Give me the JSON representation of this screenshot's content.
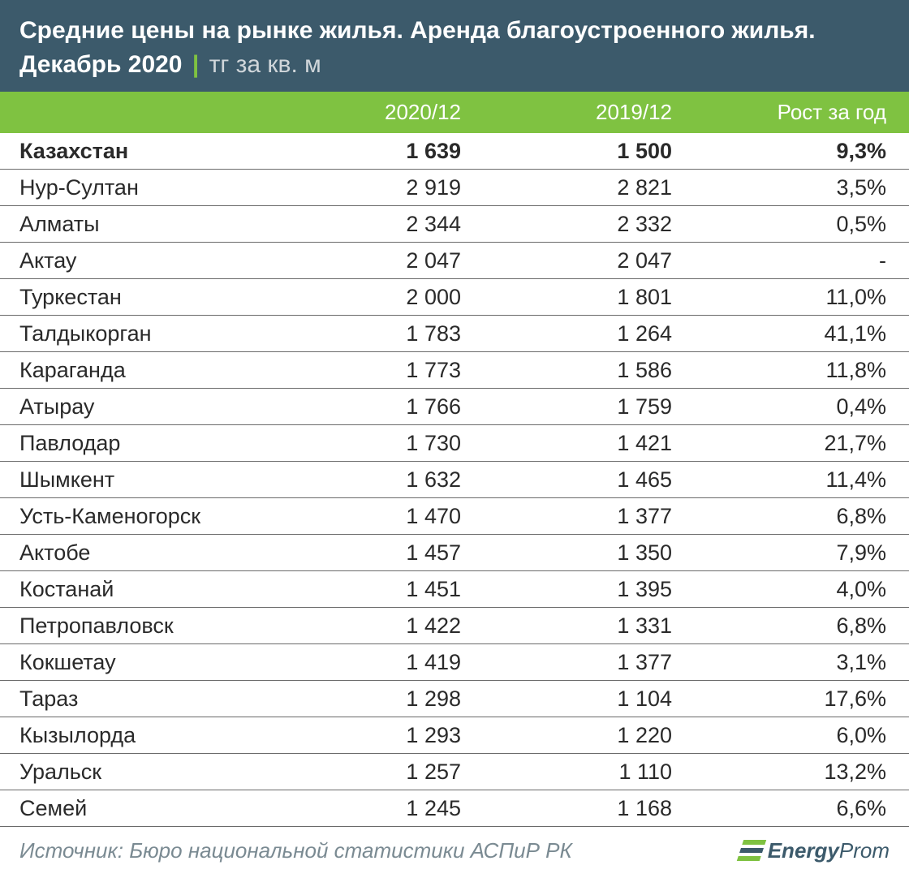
{
  "header": {
    "title": "Средние цены на рынке жилья. Аренда благоустроенного жилья.",
    "date": "Декабрь 2020",
    "separator": "|",
    "unit": "тг за кв. м"
  },
  "columns": {
    "name": "",
    "y2020": "2020/12",
    "y2019": "2019/12",
    "growth": "Рост за год"
  },
  "rows": [
    {
      "name": "Казахстан",
      "y2020": "1 639",
      "y2019": "1 500",
      "growth": "9,3%",
      "bold": true
    },
    {
      "name": "Нур-Султан",
      "y2020": "2 919",
      "y2019": "2 821",
      "growth": "3,5%",
      "bold": false
    },
    {
      "name": "Алматы",
      "y2020": "2 344",
      "y2019": "2 332",
      "growth": "0,5%",
      "bold": false
    },
    {
      "name": "Актау",
      "y2020": "2 047",
      "y2019": "2 047",
      "growth": "-",
      "bold": false
    },
    {
      "name": "Туркестан",
      "y2020": "2 000",
      "y2019": "1 801",
      "growth": "11,0%",
      "bold": false
    },
    {
      "name": "Талдыкорган",
      "y2020": "1 783",
      "y2019": "1 264",
      "growth": "41,1%",
      "bold": false
    },
    {
      "name": "Караганда",
      "y2020": "1 773",
      "y2019": "1 586",
      "growth": "11,8%",
      "bold": false
    },
    {
      "name": "Атырау",
      "y2020": "1 766",
      "y2019": "1 759",
      "growth": "0,4%",
      "bold": false
    },
    {
      "name": "Павлодар",
      "y2020": "1 730",
      "y2019": "1 421",
      "growth": "21,7%",
      "bold": false
    },
    {
      "name": "Шымкент",
      "y2020": "1 632",
      "y2019": "1 465",
      "growth": "11,4%",
      "bold": false
    },
    {
      "name": "Усть-Каменогорск",
      "y2020": "1 470",
      "y2019": "1 377",
      "growth": "6,8%",
      "bold": false
    },
    {
      "name": "Актобе",
      "y2020": "1 457",
      "y2019": "1 350",
      "growth": "7,9%",
      "bold": false
    },
    {
      "name": "Костанай",
      "y2020": "1 451",
      "y2019": "1 395",
      "growth": "4,0%",
      "bold": false
    },
    {
      "name": "Петропавловск",
      "y2020": "1 422",
      "y2019": "1 331",
      "growth": "6,8%",
      "bold": false
    },
    {
      "name": "Кокшетау",
      "y2020": "1 419",
      "y2019": "1 377",
      "growth": "3,1%",
      "bold": false
    },
    {
      "name": "Тараз",
      "y2020": "1 298",
      "y2019": "1 104",
      "growth": "17,6%",
      "bold": false
    },
    {
      "name": "Кызылорда",
      "y2020": "1 293",
      "y2019": "1 220",
      "growth": "6,0%",
      "bold": false
    },
    {
      "name": "Уральск",
      "y2020": "1 257",
      "y2019": "1 110",
      "growth": "13,2%",
      "bold": false
    },
    {
      "name": "Семей",
      "y2020": "1 245",
      "y2019": "1 168",
      "growth": "6,6%",
      "bold": false
    }
  ],
  "footer": {
    "source": "Источник: Бюро национальной статистики АСПиР РК",
    "logo_energy": "Energy",
    "logo_prom": "Prom"
  },
  "style": {
    "header_bg": "#3c5a6b",
    "accent_green": "#7fc241",
    "text_color": "#2a2a2a",
    "source_color": "#7a8a92",
    "row_border": "#6a6a6a"
  }
}
